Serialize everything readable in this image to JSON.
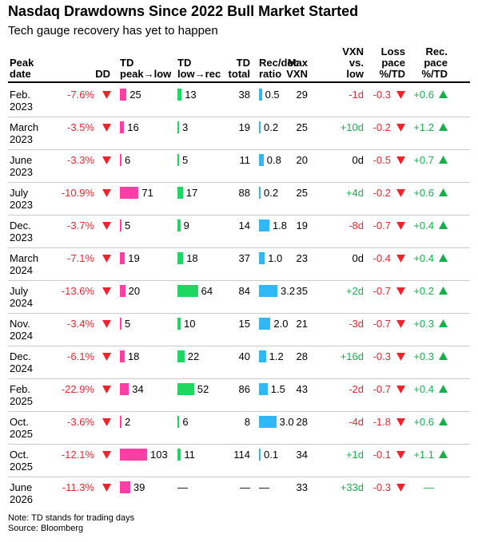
{
  "header": {
    "title": "Nasdaq Drawdowns Since 2022 Bull Market Started",
    "subtitle": "Tech gauge recovery has yet to happen"
  },
  "table": {
    "columns": [
      "Peak\ndate",
      "DD",
      "TD\npeak→low",
      "TD\nlow→rec",
      "TD\ntotal",
      "Rec/dec\nratio",
      "Max\nVXN",
      "VXN\nvs.\nlow",
      "Loss\npace\n%/TD",
      "Rec.\npace\n%/TD"
    ],
    "rows": [
      [
        "Feb.\n2023",
        "-7.6%",
        "25",
        "13",
        "38",
        "0.5",
        "29",
        "-1d",
        "-0.3",
        "+0.6"
      ],
      [
        "March\n2023",
        "-3.5%",
        "16",
        "3",
        "19",
        "0.2",
        "25",
        "+10d",
        "-0.2",
        "+1.2"
      ],
      [
        "June\n2023",
        "-3.3%",
        "6",
        "5",
        "11",
        "0.8",
        "20",
        "0d",
        "-0.5",
        "+0.7"
      ],
      [
        "July\n2023",
        "-10.9%",
        "71",
        "17",
        "88",
        "0.2",
        "25",
        "+4d",
        "-0.2",
        "+0.6"
      ],
      [
        "Dec.\n2023",
        "-3.7%",
        "5",
        "9",
        "14",
        "1.8",
        "19",
        "-8d",
        "-0.7",
        "+0.4"
      ],
      [
        "March\n2024",
        "-7.1%",
        "19",
        "18",
        "37",
        "1.0",
        "23",
        "0d",
        "-0.4",
        "+0.4"
      ],
      [
        "July\n2024",
        "-13.6%",
        "20",
        "64",
        "84",
        "3.2",
        "35",
        "+2d",
        "-0.7",
        "+0.2"
      ],
      [
        "Nov.\n2024",
        "-3.4%",
        "5",
        "10",
        "15",
        "2.0",
        "21",
        "-3d",
        "-0.7",
        "+0.3"
      ],
      [
        "Dec.\n2024",
        "-6.1%",
        "18",
        "22",
        "40",
        "1.2",
        "28",
        "+16d",
        "-0.3",
        "+0.3"
      ],
      [
        "Feb.\n2025",
        "-22.9%",
        "34",
        "52",
        "86",
        "1.5",
        "43",
        "-2d",
        "-0.7",
        "+0.4"
      ],
      [
        "Oct.\n2025",
        "-3.6%",
        "2",
        "6",
        "8",
        "3.0",
        "28",
        "-4d",
        "-1.8",
        "+0.6"
      ],
      [
        "Oct.\n2025",
        "-12.1%",
        "103",
        "11",
        "114",
        "0.1",
        "34",
        "+1d",
        "-0.1",
        "+1.1"
      ],
      [
        "June\n2026",
        "-11.3%",
        "39",
        "—",
        "—",
        "—",
        "33",
        "+33d",
        "-0.3",
        "—"
      ]
    ]
  },
  "footer": {
    "note": "Note: TD stands for trading days",
    "source": "Source: Bloomberg"
  }
}
